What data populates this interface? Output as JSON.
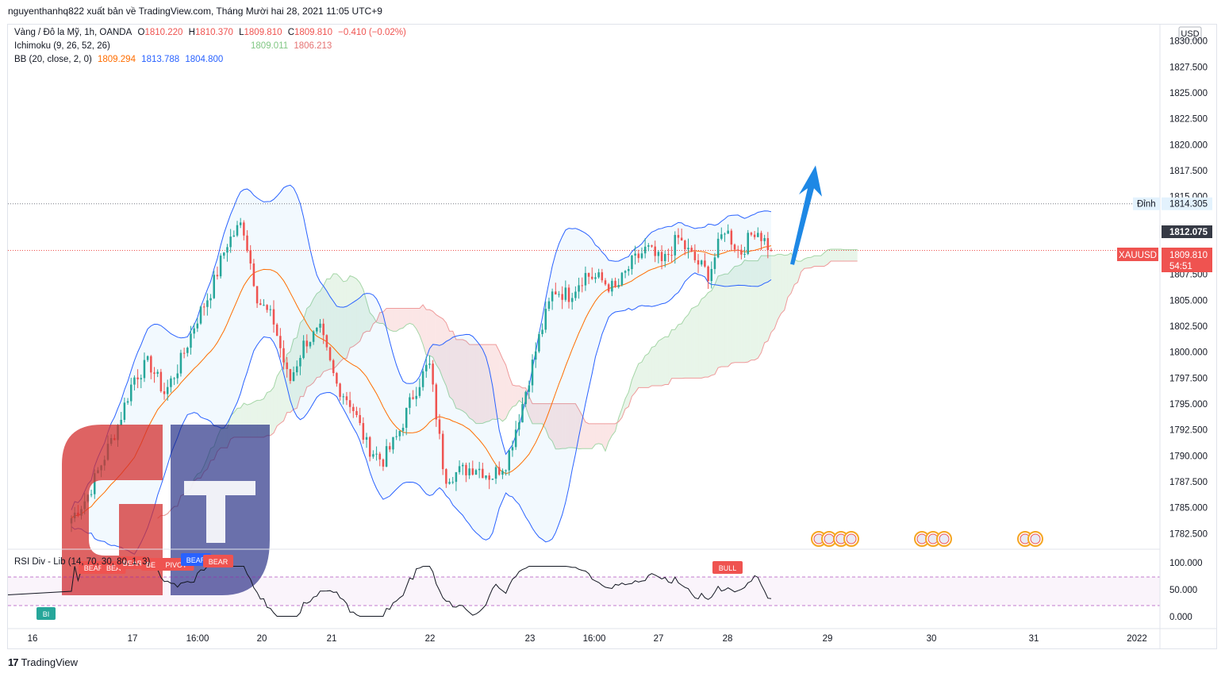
{
  "header": {
    "published": "nguyenthanhq822 xuất bản về TradingView.com, Tháng Mười hai 28, 2021 11:05 UTC+9"
  },
  "legend": {
    "symbol": "Vàng / Đô la Mỹ, 1h, OANDA",
    "o_label": "O",
    "o_value": "1810.220",
    "h_label": "H",
    "h_value": "1810.370",
    "l_label": "L",
    "l_value": "1809.810",
    "c_label": "C",
    "c_value": "1809.810",
    "change": "−0.410 (−0.02%)",
    "ichimoku_label": "Ichimoku (9, 26, 52, 26)",
    "ichimoku_v1": "1809.011",
    "ichimoku_v2": "1806.213",
    "bb_label": "BB (20, close, 2, 0)",
    "bb_v1": "1809.294",
    "bb_v2": "1813.788",
    "bb_v3": "1804.800"
  },
  "rsi_legend": "RSI Div - Lib (14, 70, 30, 80, 1, 3)",
  "price_axis": {
    "currency": "USD",
    "ticks": [
      "1830.000",
      "1827.500",
      "1825.000",
      "1822.500",
      "1820.000",
      "1817.500",
      "1815.000",
      "1807.500",
      "1805.000",
      "1802.500",
      "1800.000",
      "1797.500",
      "1795.000",
      "1792.500",
      "1790.000",
      "1787.500",
      "1785.000",
      "1782.500"
    ],
    "dinh_label": "Đỉnh",
    "dinh_value": "1814.305",
    "mark_value": "1812.075",
    "symbol_tag": "XAUUSD",
    "last_price": "1809.810",
    "countdown": "54:51"
  },
  "rsi_axis": {
    "ticks": [
      "100.000",
      "50.000",
      "0.000"
    ]
  },
  "time_axis": {
    "ticks": [
      "16",
      "17",
      "16:00",
      "20",
      "21",
      "22",
      "23",
      "16:00",
      "27",
      "28",
      "29",
      "30",
      "31",
      "2022"
    ]
  },
  "signals": [
    "BEAR",
    "BEA",
    "BEAR",
    "BE",
    "PIVOT",
    "BEAR",
    "BEAR",
    "BULL",
    "BI"
  ],
  "footer": {
    "brand": "TradingView",
    "logo": "17"
  },
  "colors": {
    "up": "#26a69a",
    "down": "#ef5350",
    "bb": "#2962ff",
    "basis": "#ff6d00",
    "cloud_green": "#a5d6a7",
    "cloud_red": "#ef9a9a",
    "arrow": "#1e88e5",
    "rsi_line": "#131722"
  },
  "chart_data": {
    "type": "candlestick",
    "ylim": [
      1781.0,
      1831.5
    ],
    "x_ticks": [
      "16",
      "17",
      "16:00",
      "20",
      "21",
      "22",
      "23",
      "16:00",
      "27",
      "28",
      "29",
      "30",
      "31",
      "2022"
    ],
    "close_path": [
      1784.0,
      1786.0,
      1789.5,
      1793.0,
      1797.5,
      1799.0,
      1796.0,
      1799.0,
      1803.0,
      1806.0,
      1810.5,
      1812.5,
      1805.0,
      1803.0,
      1797.0,
      1801.0,
      1802.0,
      1797.0,
      1795.0,
      1791.0,
      1789.5,
      1792.0,
      1796.0,
      1799.0,
      1788.0,
      1788.5,
      1789.0,
      1788.0,
      1789.5,
      1795.0,
      1801.0,
      1806.0,
      1805.5,
      1807.5,
      1807.0,
      1806.0,
      1808.5,
      1810.0,
      1808.5,
      1811.0,
      1809.0,
      1807.5,
      1812.0,
      1809.5,
      1812.0,
      1809.8
    ],
    "last_close": 1809.81,
    "resistance": 1814.305,
    "rsi": {
      "ylim": [
        0,
        100
      ],
      "overbought": 70,
      "oversold": 30
    }
  }
}
